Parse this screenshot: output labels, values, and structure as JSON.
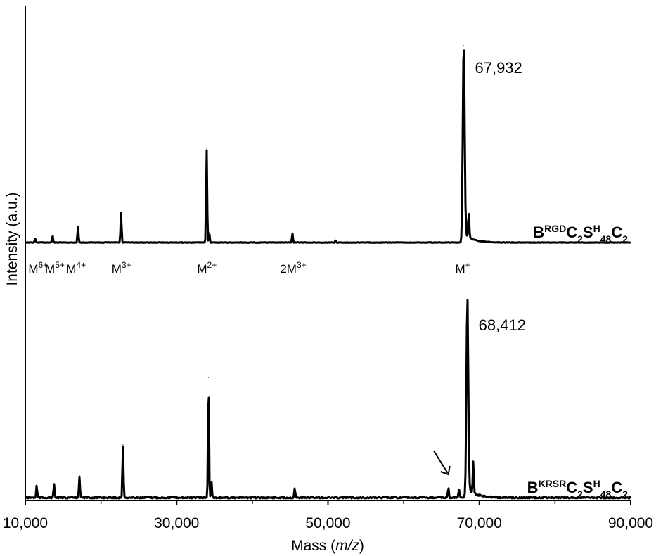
{
  "chart_data": {
    "type": "line",
    "xlabel_prefix": "Mass (",
    "xlabel_italic": "m/z",
    "xlabel_suffix": ")",
    "ylabel": "Intensity (a.u.)",
    "xlim": [
      10000,
      90000
    ],
    "x_ticks": [
      10000,
      30000,
      50000,
      70000,
      90000
    ],
    "x_tick_labels": [
      "10,000",
      "30,000",
      "50,000",
      "70,000",
      "90,000"
    ],
    "grid": false,
    "series": [
      {
        "name": "BRGDC2SH48C2",
        "name_parts": [
          "B",
          "RGD",
          "C",
          "2",
          "S",
          "H",
          "48",
          "C",
          "2"
        ],
        "peaks": [
          {
            "x": 11300,
            "height": 0.02
          },
          {
            "x": 13600,
            "height": 0.035
          },
          {
            "x": 16960,
            "height": 0.08
          },
          {
            "x": 22650,
            "height": 0.15
          },
          {
            "x": 33960,
            "height": 0.47
          },
          {
            "x": 34300,
            "height": 0.05
          },
          {
            "x": 45300,
            "height": 0.045
          },
          {
            "x": 51000,
            "height": 0.01
          },
          {
            "x": 67932,
            "height": 0.99
          },
          {
            "x": 68600,
            "height": 0.13
          }
        ],
        "peak_annotation": "67,932",
        "peak_annotation_x": 67932
      },
      {
        "name": "BKRSRC2SH48C2",
        "name_parts": [
          "B",
          "KRSR",
          "C",
          "2",
          "S",
          "H",
          "48",
          "C",
          "2"
        ],
        "peaks": [
          {
            "x": 11500,
            "height": 0.06
          },
          {
            "x": 13800,
            "height": 0.07
          },
          {
            "x": 17150,
            "height": 0.11
          },
          {
            "x": 22900,
            "height": 0.27
          },
          {
            "x": 34210,
            "height": 0.61
          },
          {
            "x": 34600,
            "height": 0.08
          },
          {
            "x": 45600,
            "height": 0.05
          },
          {
            "x": 65900,
            "height": 0.05
          },
          {
            "x": 67300,
            "height": 0.04
          },
          {
            "x": 68412,
            "height": 0.99
          },
          {
            "x": 69200,
            "height": 0.16
          }
        ],
        "peak_annotation": "68,412",
        "peak_annotation_x": 68412
      }
    ],
    "ion_labels": [
      {
        "base": "M",
        "sup": "6+",
        "x": 11700
      },
      {
        "base": "M",
        "sup": "5+",
        "x": 13900
      },
      {
        "base": "M",
        "sup": "4+",
        "x": 16700
      },
      {
        "base": "M",
        "sup": "3+",
        "x": 22700
      },
      {
        "base": "M",
        "sup": "2+",
        "x": 34000
      },
      {
        "base": "2M",
        "sup": "3+",
        "x": 45400
      },
      {
        "base": "M",
        "sup": "+",
        "x": 67800
      }
    ],
    "arrow_annotation_x": 66000
  }
}
